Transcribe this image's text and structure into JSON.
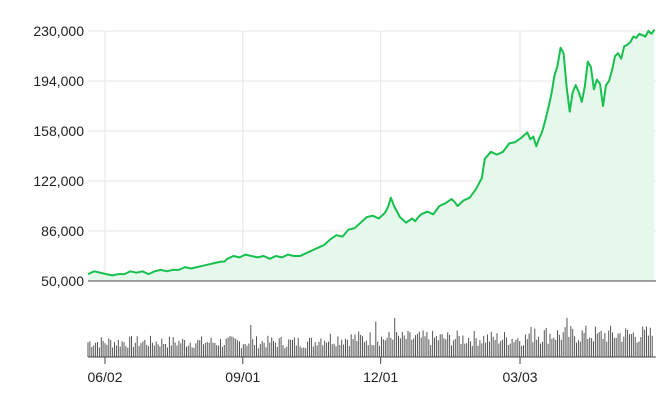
{
  "chart_data": {
    "type": "area",
    "title": "",
    "xlabel": "",
    "ylabel": "",
    "ylim": [
      50000,
      230000
    ],
    "yticks": [
      "230,000",
      "194,000",
      "158,000",
      "122,000",
      "86,000",
      "50,000"
    ],
    "ytick_values": [
      230000,
      194000,
      158000,
      122000,
      86000,
      50000
    ],
    "xticks": [
      "06/02",
      "09/01",
      "12/01",
      "03/03"
    ],
    "xtick_days": [
      0,
      91,
      182,
      274
    ],
    "x_span_days": 355,
    "grid": true,
    "colors": {
      "line": "#17c04e",
      "fill": "#e6f8ec",
      "volume": "#555555"
    },
    "price_series": [
      [
        0,
        55000
      ],
      [
        4,
        57000
      ],
      [
        8,
        56000
      ],
      [
        12,
        55000
      ],
      [
        16,
        54000
      ],
      [
        20,
        55000
      ],
      [
        24,
        55000
      ],
      [
        28,
        57000
      ],
      [
        32,
        56000
      ],
      [
        36,
        57000
      ],
      [
        40,
        55000
      ],
      [
        44,
        57000
      ],
      [
        48,
        58000
      ],
      [
        52,
        57000
      ],
      [
        56,
        58000
      ],
      [
        60,
        58000
      ],
      [
        64,
        60000
      ],
      [
        68,
        59000
      ],
      [
        72,
        60000
      ],
      [
        76,
        61000
      ],
      [
        80,
        62000
      ],
      [
        84,
        63000
      ],
      [
        88,
        64000
      ],
      [
        90,
        64000
      ],
      [
        92,
        66000
      ],
      [
        96,
        68000
      ],
      [
        100,
        67000
      ],
      [
        104,
        69000
      ],
      [
        108,
        68000
      ],
      [
        112,
        67000
      ],
      [
        116,
        68000
      ],
      [
        120,
        66000
      ],
      [
        124,
        68000
      ],
      [
        128,
        67000
      ],
      [
        132,
        69000
      ],
      [
        136,
        68000
      ],
      [
        140,
        68000
      ],
      [
        144,
        70000
      ],
      [
        148,
        72000
      ],
      [
        152,
        74000
      ],
      [
        156,
        76000
      ],
      [
        160,
        80000
      ],
      [
        164,
        83000
      ],
      [
        168,
        82000
      ],
      [
        172,
        87000
      ],
      [
        176,
        88000
      ],
      [
        180,
        92000
      ],
      [
        184,
        96000
      ],
      [
        188,
        97000
      ],
      [
        192,
        95000
      ],
      [
        196,
        99000
      ],
      [
        198,
        103000
      ],
      [
        200,
        110000
      ],
      [
        202,
        104000
      ],
      [
        206,
        96000
      ],
      [
        210,
        92000
      ],
      [
        214,
        95000
      ],
      [
        216,
        93000
      ],
      [
        218,
        96000
      ],
      [
        220,
        98000
      ],
      [
        224,
        100000
      ],
      [
        228,
        98000
      ],
      [
        232,
        104000
      ],
      [
        236,
        106000
      ],
      [
        240,
        109000
      ],
      [
        242,
        107000
      ],
      [
        244,
        104000
      ],
      [
        248,
        108000
      ],
      [
        252,
        110000
      ],
      [
        256,
        116000
      ],
      [
        260,
        124000
      ],
      [
        262,
        138000
      ],
      [
        266,
        143000
      ],
      [
        270,
        141000
      ],
      [
        274,
        143000
      ],
      [
        278,
        149000
      ],
      [
        282,
        150000
      ],
      [
        286,
        153000
      ],
      [
        290,
        157000
      ],
      [
        292,
        152000
      ],
      [
        294,
        154000
      ],
      [
        296,
        147000
      ],
      [
        298,
        153000
      ],
      [
        300,
        158000
      ],
      [
        302,
        166000
      ],
      [
        304,
        175000
      ],
      [
        306,
        185000
      ],
      [
        308,
        198000
      ],
      [
        310,
        205000
      ],
      [
        312,
        218000
      ],
      [
        314,
        214000
      ],
      [
        316,
        190000
      ],
      [
        318,
        172000
      ],
      [
        320,
        186000
      ],
      [
        322,
        191000
      ],
      [
        324,
        186000
      ],
      [
        326,
        179000
      ],
      [
        328,
        190000
      ],
      [
        330,
        208000
      ],
      [
        332,
        204000
      ],
      [
        334,
        188000
      ],
      [
        336,
        195000
      ],
      [
        338,
        192000
      ],
      [
        340,
        176000
      ],
      [
        342,
        191000
      ],
      [
        344,
        194000
      ],
      [
        346,
        202000
      ],
      [
        348,
        212000
      ],
      [
        350,
        214000
      ],
      [
        352,
        210000
      ],
      [
        354,
        219000
      ],
      [
        356,
        220000
      ],
      [
        358,
        222000
      ],
      [
        360,
        226000
      ],
      [
        362,
        225000
      ],
      [
        364,
        228000
      ],
      [
        366,
        227000
      ],
      [
        368,
        226000
      ],
      [
        370,
        230000
      ],
      [
        372,
        228000
      ],
      [
        374,
        231000
      ]
    ],
    "volume_baseline": 0.2,
    "volume_spikes": [
      [
        317,
        1.0
      ],
      [
        316,
        0.55
      ],
      [
        203,
        0.55
      ],
      [
        190,
        0.5
      ],
      [
        108,
        0.45
      ],
      [
        224,
        0.35
      ],
      [
        295,
        0.4
      ],
      [
        297,
        0.38
      ],
      [
        338,
        0.35
      ],
      [
        336,
        0.33
      ]
    ]
  }
}
